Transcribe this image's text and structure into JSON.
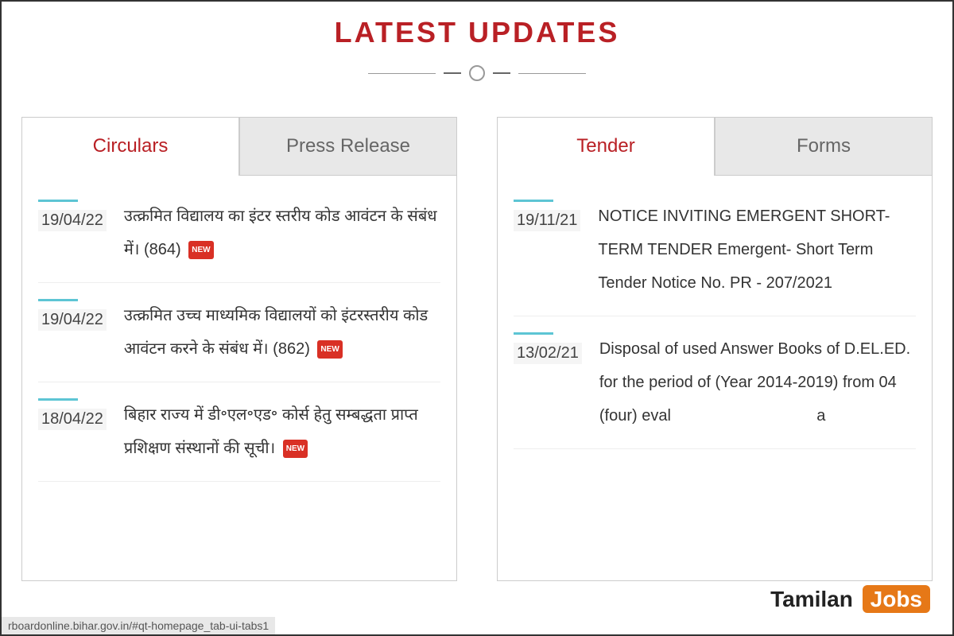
{
  "title": "LATEST UPDATES",
  "colors": {
    "accent": "#b92025",
    "teal": "#5dc5d4",
    "badge": "#d93025",
    "jobs_bg": "#e67817"
  },
  "left_panel": {
    "tabs": [
      {
        "label": "Circulars",
        "active": true
      },
      {
        "label": "Press Release",
        "active": false
      }
    ],
    "items": [
      {
        "date": "19/04/22",
        "text": "उत्क्रमित विद्यालय का इंटर स्तरीय कोड आवंटन के संबंध में। (864)",
        "new": true
      },
      {
        "date": "19/04/22",
        "text": "उत्क्रमित उच्च माध्यमिक विद्यालयों को इंटरस्तरीय कोड आवंटन करने के संबंध में। (862)",
        "new": true
      },
      {
        "date": "18/04/22",
        "text": "बिहार राज्य में डी॰एल॰एड॰ कोर्स हेतु सम्बद्धता प्राप्त प्रशिक्षण संस्थानों की सूची।",
        "new": true
      }
    ]
  },
  "right_panel": {
    "tabs": [
      {
        "label": "Tender",
        "active": true
      },
      {
        "label": "Forms",
        "active": false
      }
    ],
    "items": [
      {
        "date": "19/11/21",
        "text": "NOTICE INVITING EMERGENT SHORT-TERM TENDER Emergent- Short Term Tender Notice No. PR - 207/2021",
        "new": false
      },
      {
        "date": "13/02/21",
        "text": "Disposal of used Answer Books of D.EL.ED. for the period of (Year 2014-2019) from 04 (four) eval",
        "new": false
      }
    ]
  },
  "watermark": {
    "brand": "Tamilan",
    "suffix": "Jobs"
  },
  "status_url": "rboardonline.bihar.gov.in/#qt-homepage_tab-ui-tabs1",
  "right_trail": "a"
}
